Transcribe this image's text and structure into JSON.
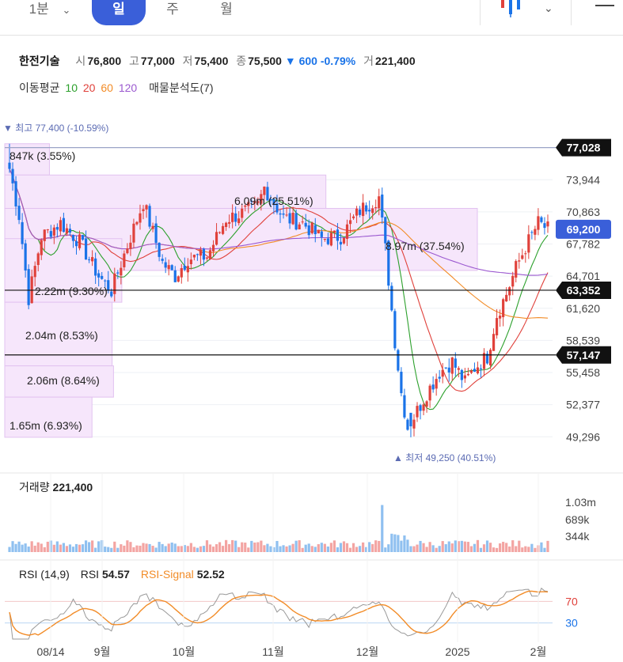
{
  "header": {
    "timeframe_select": "1분",
    "tabs": [
      {
        "label": "일",
        "active": true
      },
      {
        "label": "주",
        "active": false
      },
      {
        "label": "월",
        "active": false
      }
    ],
    "chart_style_icon": "candle-icon",
    "more_icon": "chevron-down-icon",
    "menu_icon": "menu-icon"
  },
  "stock": {
    "name": "한전기술",
    "open_label": "시",
    "open": "76,800",
    "high_label": "고",
    "high": "77,000",
    "low_label": "저",
    "low": "75,400",
    "close_label": "종",
    "close": "75,500",
    "change": "▼ 600",
    "change_pct": "-0.79%",
    "volume_label": "거",
    "volume": "221,400"
  },
  "ma_legend": {
    "label": "이동평균",
    "periods": [
      {
        "text": "10",
        "color": "#2ca02c"
      },
      {
        "text": "20",
        "color": "#e0413b"
      },
      {
        "text": "60",
        "color": "#f28c28"
      },
      {
        "text": "120",
        "color": "#9b59d0"
      }
    ],
    "profile_label": "매물분석도(7)"
  },
  "chart_data": {
    "type": "candlestick",
    "x_ticks": [
      "08/14",
      "9월",
      "10월",
      "11월",
      "12월",
      "2025",
      "2월"
    ],
    "y_ticks": [
      "73,944",
      "70,863",
      "67,782",
      "64,701",
      "61,620",
      "58,539",
      "55,458",
      "52,377",
      "49,296"
    ],
    "ylim": [
      47800,
      79200
    ],
    "max_annotation": "▼ 최고 77,400 (-10.59%)",
    "min_annotation": "▲ 최저 49,250 (40.51%)",
    "price_lines": [
      {
        "value": 77028,
        "label": "77,028",
        "style": "dark"
      },
      {
        "value": 63352,
        "label": "63,352",
        "style": "dark"
      },
      {
        "value": 57147,
        "label": "57,147",
        "style": "dark"
      },
      {
        "value": 69200,
        "label": "69,200",
        "style": "current"
      }
    ],
    "volume_profile": [
      {
        "label": "847k (3.55%)",
        "lo": 74400,
        "hi": 77400,
        "share": 3.55
      },
      {
        "label": "6.09m (25.51%)",
        "lo": 68300,
        "hi": 74400,
        "share": 25.51
      },
      {
        "label": "8.97m (37.54%)",
        "lo": 65250,
        "hi": 71200,
        "share": 37.54
      },
      {
        "label": "2.22m (9.30%)",
        "lo": 62200,
        "hi": 68300,
        "share": 9.3
      },
      {
        "label": "2.04m (8.53%)",
        "lo": 56100,
        "hi": 62200,
        "share": 8.53
      },
      {
        "label": "2.06m (8.64%)",
        "lo": 53100,
        "hi": 56100,
        "share": 8.64
      },
      {
        "label": "1.65m (6.93%)",
        "lo": 49250,
        "hi": 53100,
        "share": 6.93
      }
    ],
    "ma_periods": [
      10,
      20,
      60,
      120
    ],
    "volume_panel": {
      "label": "거래량",
      "value": "221,400",
      "ticks": [
        "1.03m",
        "689k",
        "344k"
      ],
      "ylim": [
        0,
        1200000
      ]
    },
    "rsi_panel": {
      "label": "RSI (14,9)",
      "rsi_label": "RSI",
      "rsi_value": "54.57",
      "signal_label": "RSI-Signal",
      "signal_value": "52.52",
      "levels": [
        "70",
        "30"
      ],
      "ylim": [
        0,
        100
      ]
    }
  }
}
